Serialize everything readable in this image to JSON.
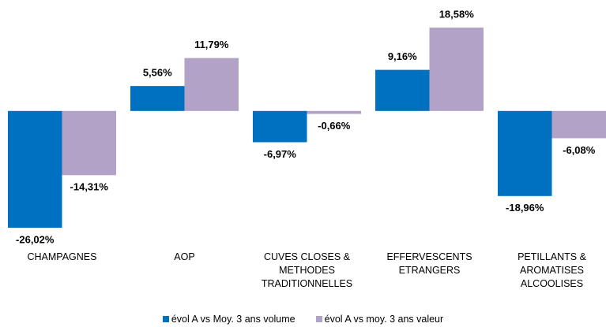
{
  "chart_data": {
    "type": "bar",
    "categories": [
      "CHAMPAGNES",
      "AOP",
      "CUVES CLOSES &\nMETHODES\nTRADITIONNELLES",
      "EFFERVESCENTS\nETRANGERS",
      "PETILLANTS &\nAROMATISES\nALCOOLISES"
    ],
    "series": [
      {
        "name": "évol A vs Moy. 3 ans volume",
        "color": "#0070c0",
        "values": [
          -26.02,
          5.56,
          -6.97,
          9.16,
          -18.96
        ],
        "value_labels": [
          "-26,02%",
          "5,56%",
          "-6,97%",
          "9,16%",
          "-18,96%"
        ]
      },
      {
        "name": "évol A vs moy. 3 ans valeur",
        "color": "#b3a2c7",
        "values": [
          -14.31,
          11.79,
          -0.66,
          18.58,
          -6.08
        ],
        "value_labels": [
          "-14,31%",
          "11,79%",
          "-0,66%",
          "18,58%",
          "-6,08%"
        ]
      }
    ],
    "legend": "bottom"
  }
}
